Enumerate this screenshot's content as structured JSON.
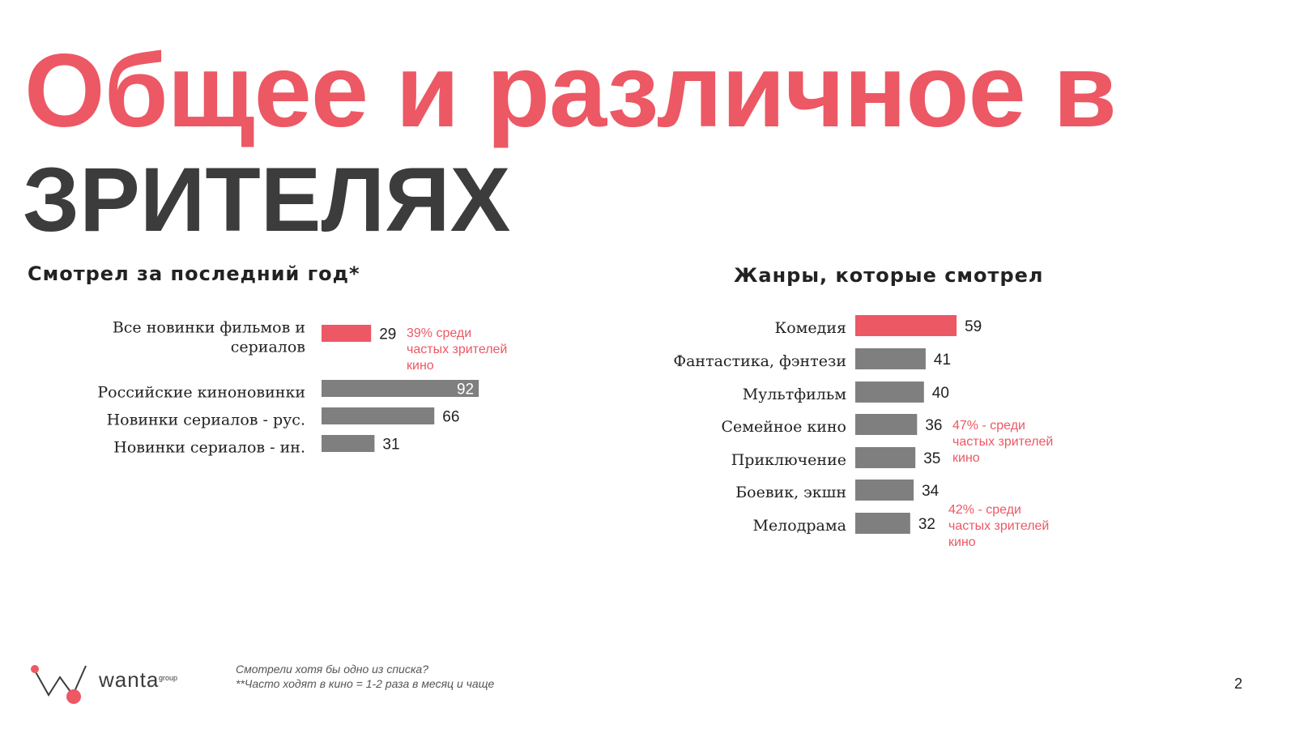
{
  "title": {
    "line1": "Общее и различное в",
    "line2": "ЗРИТЕЛЯХ"
  },
  "colors": {
    "accent": "#ec5864",
    "bar_gray": "#7f7f7f",
    "title_dark": "#3c3c3c"
  },
  "chart_data": [
    {
      "type": "bar",
      "orientation": "horizontal",
      "title": "Смотрел за последний год*",
      "categories": [
        [
          "Все новинки фильмов и",
          "сериалов"
        ],
        [
          "Российские киноновинки"
        ],
        [
          "Новинки сериалов - рус."
        ],
        [
          "Новинки сериалов - ин."
        ]
      ],
      "values": [
        29,
        92,
        66,
        31
      ],
      "highlight_index": 0,
      "annotations": [
        {
          "category_index": 0,
          "lines": [
            "39% среди",
            "частых зрителей",
            "кино"
          ]
        }
      ]
    },
    {
      "type": "bar",
      "orientation": "horizontal",
      "title": "Жанры,  которые смотрел",
      "categories": [
        [
          "Комедия"
        ],
        [
          "Фантастика, фэнтези"
        ],
        [
          "Мультфильм"
        ],
        [
          "Семейное кино"
        ],
        [
          "Приключение"
        ],
        [
          "Боевик, экшн"
        ],
        [
          "Мелодрама"
        ]
      ],
      "values": [
        59,
        41,
        40,
        36,
        35,
        34,
        32
      ],
      "highlight_index": 0,
      "annotations": [
        {
          "category_index": 3,
          "lines": [
            "47% - среди",
            "частых зрителей",
            "кино"
          ]
        },
        {
          "category_index": 6,
          "lines": [
            "42% - среди",
            "частых зрителей",
            "кино"
          ]
        }
      ]
    }
  ],
  "footer": {
    "logo_word": "wanta",
    "logo_sub": "group",
    "note1": "Смотрели хотя бы одно из списка?",
    "note2": "**Часто ходят в кино = 1-2 раза в месяц и чаще",
    "page_number": "2"
  }
}
